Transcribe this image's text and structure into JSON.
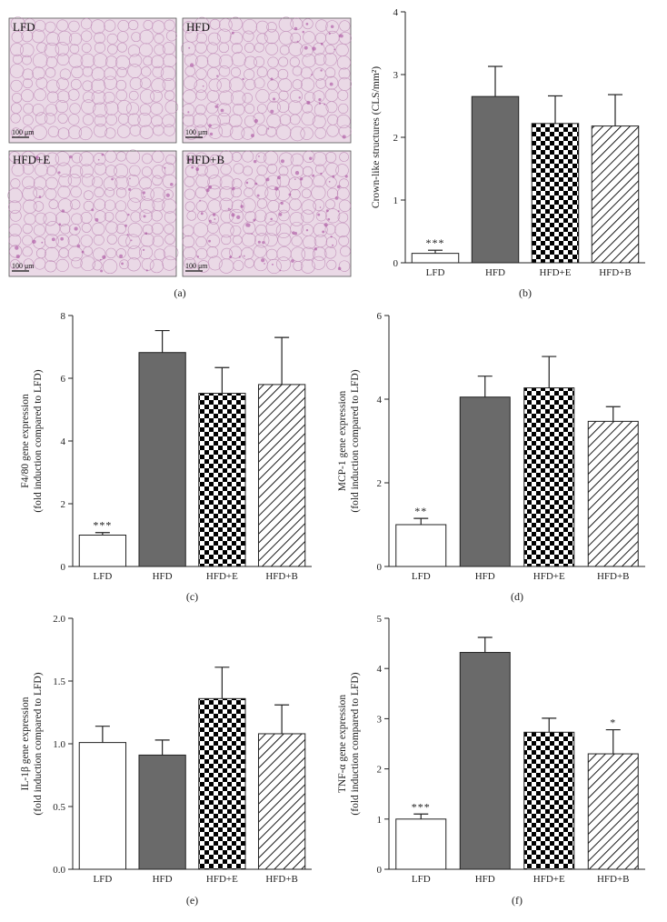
{
  "colors": {
    "LFD": "#ffffff",
    "HFD": "#6a6a6a",
    "HFD+E": "checkerboard-black-white",
    "HFD+B": "diagonal-hatch-black-white",
    "tissue_bg": "#ead9e6",
    "tissue_line": "#b77cae"
  },
  "histology": {
    "letter": "(a)",
    "panels": [
      {
        "label": "LFD",
        "scale": "100 μm"
      },
      {
        "label": "HFD",
        "scale": "100 μm"
      },
      {
        "label": "HFD+E",
        "scale": "100 μm"
      },
      {
        "label": "HFD+B",
        "scale": "100 μm"
      }
    ]
  },
  "chart_data": [
    {
      "panel": "(b)",
      "type": "bar",
      "categories": [
        "LFD",
        "HFD",
        "HFD+E",
        "HFD+B"
      ],
      "values": [
        0.15,
        2.65,
        2.22,
        2.18
      ],
      "errors": [
        0.05,
        0.48,
        0.44,
        0.5
      ],
      "significance": [
        "***",
        "",
        "",
        ""
      ],
      "ylabel_lines": [
        "Crown-like structures (CLS/mm²)"
      ],
      "ylim": [
        0,
        4
      ],
      "yticks": [
        0,
        1,
        2,
        3,
        4
      ]
    },
    {
      "panel": "(c)",
      "type": "bar",
      "categories": [
        "LFD",
        "HFD",
        "HFD+E",
        "HFD+B"
      ],
      "values": [
        1.0,
        6.82,
        5.52,
        5.8
      ],
      "errors": [
        0.08,
        0.7,
        0.82,
        1.5
      ],
      "significance": [
        "***",
        "",
        "",
        ""
      ],
      "ylabel_lines": [
        "F4/80 gene expression",
        "(fold induction compared to LFD)"
      ],
      "ylim": [
        0,
        8
      ],
      "yticks": [
        0,
        2,
        4,
        6,
        8
      ]
    },
    {
      "panel": "(d)",
      "type": "bar",
      "categories": [
        "LFD",
        "HFD",
        "HFD+E",
        "HFD+B"
      ],
      "values": [
        1.0,
        4.05,
        4.27,
        3.47
      ],
      "errors": [
        0.15,
        0.5,
        0.75,
        0.35
      ],
      "significance": [
        "**",
        "",
        "",
        ""
      ],
      "ylabel_lines": [
        "MCP-1 gene expression",
        "(fold induction compared to LFD)"
      ],
      "ylim": [
        0,
        6
      ],
      "yticks": [
        0,
        2,
        4,
        6
      ]
    },
    {
      "panel": "(e)",
      "type": "bar",
      "categories": [
        "LFD",
        "HFD",
        "HFD+E",
        "HFD+B"
      ],
      "values": [
        1.01,
        0.91,
        1.36,
        1.08
      ],
      "errors": [
        0.13,
        0.12,
        0.25,
        0.23
      ],
      "significance": [
        "",
        "",
        "",
        ""
      ],
      "ylabel_lines": [
        "IL-1β gene expression",
        "(fold induction compared to LFD)"
      ],
      "ylim": [
        0,
        2.0
      ],
      "yticks": [
        "0.0",
        "0.5",
        "1.0",
        "1.5",
        "2.0"
      ]
    },
    {
      "panel": "(f)",
      "type": "bar",
      "categories": [
        "LFD",
        "HFD",
        "HFD+E",
        "HFD+B"
      ],
      "values": [
        1.0,
        4.32,
        2.73,
        2.3
      ],
      "errors": [
        0.1,
        0.3,
        0.28,
        0.48
      ],
      "significance": [
        "***",
        "",
        "",
        "*"
      ],
      "ylabel_lines": [
        "TNF-α gene expression",
        "(fold induction compared to LFD)"
      ],
      "ylim": [
        0,
        5
      ],
      "yticks": [
        0,
        1,
        2,
        3,
        4,
        5
      ]
    }
  ]
}
